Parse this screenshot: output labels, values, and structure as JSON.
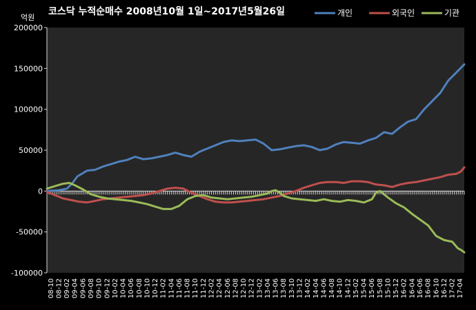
{
  "chart_data": {
    "type": "line",
    "title": "코스닥  누적순매수  2008년10월 1일~2017년5월26일",
    "unit_label": "억원",
    "ylim": [
      -100000,
      200000
    ],
    "yticks": [
      200000,
      150000,
      100000,
      50000,
      0,
      -50000,
      -100000
    ],
    "ytick_labels": [
      "200000",
      "150000",
      "100000",
      "50000",
      "0",
      "-50000",
      "-100000"
    ],
    "grid": false,
    "legend_position": "top-right",
    "x_tick_labels": [
      "08-10",
      "08-12",
      "09-02",
      "09-04",
      "09-06",
      "09-08",
      "09-10",
      "09-12",
      "10-02",
      "10-04",
      "10-06",
      "10-08",
      "10-10",
      "10-12",
      "11-02",
      "11-04",
      "11-06",
      "11-08",
      "11-10",
      "11-12",
      "12-02",
      "12-04",
      "12-06",
      "12-08",
      "12-10",
      "12-12",
      "13-02",
      "13-04",
      "13-06",
      "13-08",
      "13-10",
      "13-12",
      "14-02",
      "14-04",
      "14-06",
      "14-08",
      "14-10",
      "14-12",
      "15-02",
      "15-04",
      "15-06",
      "15-08",
      "15-10",
      "15-12",
      "16-02",
      "16-04",
      "16-06",
      "16-08",
      "16-10",
      "16-12",
      "17-02",
      "17-04"
    ],
    "x_range": [
      0,
      52
    ],
    "colors": {
      "axis": "#d9d9d9",
      "plot_bg": "#262626"
    },
    "series": [
      {
        "name": "개인",
        "color": "#4f81bd",
        "points": [
          [
            0,
            0
          ],
          [
            1.5,
            1000
          ],
          [
            2.5,
            3000
          ],
          [
            3.2,
            10000
          ],
          [
            3.8,
            18000
          ],
          [
            4.5,
            22000
          ],
          [
            5,
            25000
          ],
          [
            6,
            26000
          ],
          [
            7,
            30000
          ],
          [
            8,
            33000
          ],
          [
            9,
            36000
          ],
          [
            10,
            38000
          ],
          [
            11,
            42000
          ],
          [
            12,
            39000
          ],
          [
            13,
            40000
          ],
          [
            14,
            42000
          ],
          [
            15,
            44000
          ],
          [
            16,
            47000
          ],
          [
            17,
            44000
          ],
          [
            18,
            42000
          ],
          [
            19,
            48000
          ],
          [
            20,
            52000
          ],
          [
            21,
            56000
          ],
          [
            22,
            60000
          ],
          [
            23,
            62000
          ],
          [
            24,
            61000
          ],
          [
            25,
            62000
          ],
          [
            26,
            63000
          ],
          [
            27,
            58000
          ],
          [
            28,
            50000
          ],
          [
            29,
            51000
          ],
          [
            30,
            53000
          ],
          [
            31,
            55000
          ],
          [
            32,
            56000
          ],
          [
            33,
            54000
          ],
          [
            34,
            50000
          ],
          [
            35,
            52000
          ],
          [
            36,
            57000
          ],
          [
            37,
            60000
          ],
          [
            38,
            59000
          ],
          [
            39,
            58000
          ],
          [
            40,
            62000
          ],
          [
            41,
            65000
          ],
          [
            42,
            72000
          ],
          [
            43,
            70000
          ],
          [
            44,
            78000
          ],
          [
            45,
            85000
          ],
          [
            46,
            88000
          ],
          [
            47,
            100000
          ],
          [
            48,
            110000
          ],
          [
            49,
            120000
          ],
          [
            50,
            135000
          ],
          [
            51,
            145000
          ],
          [
            51.7,
            152000
          ],
          [
            52,
            155000
          ]
        ]
      },
      {
        "name": "외국인",
        "color": "#c0504d",
        "points": [
          [
            0,
            -1000
          ],
          [
            1,
            -5000
          ],
          [
            2,
            -9000
          ],
          [
            3,
            -11000
          ],
          [
            4,
            -13000
          ],
          [
            5,
            -14000
          ],
          [
            6,
            -12000
          ],
          [
            7,
            -10000
          ],
          [
            8,
            -9000
          ],
          [
            9,
            -8000
          ],
          [
            10,
            -7000
          ],
          [
            11,
            -6000
          ],
          [
            12,
            -5000
          ],
          [
            13,
            -3000
          ],
          [
            14,
            0
          ],
          [
            15,
            3000
          ],
          [
            16,
            4000
          ],
          [
            17,
            3000
          ],
          [
            18,
            -2000
          ],
          [
            19,
            -6000
          ],
          [
            20,
            -10000
          ],
          [
            21,
            -13000
          ],
          [
            22,
            -14000
          ],
          [
            23,
            -14000
          ],
          [
            24,
            -13000
          ],
          [
            25,
            -12000
          ],
          [
            26,
            -11000
          ],
          [
            27,
            -10000
          ],
          [
            28,
            -8000
          ],
          [
            29,
            -6000
          ],
          [
            30,
            -3000
          ],
          [
            31,
            0
          ],
          [
            32,
            4000
          ],
          [
            33,
            7000
          ],
          [
            34,
            10000
          ],
          [
            35,
            11000
          ],
          [
            36,
            11000
          ],
          [
            37,
            10000
          ],
          [
            38,
            12000
          ],
          [
            39,
            12000
          ],
          [
            40,
            11000
          ],
          [
            41,
            8000
          ],
          [
            42,
            7000
          ],
          [
            43,
            5000
          ],
          [
            44,
            8000
          ],
          [
            45,
            10000
          ],
          [
            46,
            11000
          ],
          [
            47,
            13000
          ],
          [
            48,
            15000
          ],
          [
            49,
            17000
          ],
          [
            50,
            20000
          ],
          [
            51,
            21000
          ],
          [
            51.6,
            24000
          ],
          [
            52,
            29000
          ]
        ]
      },
      {
        "name": "기관",
        "color": "#9bbb59",
        "points": [
          [
            0,
            3000
          ],
          [
            1,
            6000
          ],
          [
            2,
            9000
          ],
          [
            2.8,
            10000
          ],
          [
            3.5,
            7000
          ],
          [
            4.5,
            2000
          ],
          [
            5.5,
            -4000
          ],
          [
            6.5,
            -7000
          ],
          [
            7.5,
            -9000
          ],
          [
            8.5,
            -10000
          ],
          [
            9.5,
            -11000
          ],
          [
            10.5,
            -12000
          ],
          [
            11.5,
            -14000
          ],
          [
            12.5,
            -16000
          ],
          [
            13.5,
            -19000
          ],
          [
            14.5,
            -22000
          ],
          [
            15.5,
            -22000
          ],
          [
            16.5,
            -18000
          ],
          [
            17.5,
            -10000
          ],
          [
            18.5,
            -6000
          ],
          [
            19.5,
            -5000
          ],
          [
            20.5,
            -8000
          ],
          [
            21.5,
            -9000
          ],
          [
            22.5,
            -10000
          ],
          [
            23.5,
            -9000
          ],
          [
            24.5,
            -8000
          ],
          [
            25.5,
            -7000
          ],
          [
            26.5,
            -5000
          ],
          [
            27.5,
            -3000
          ],
          [
            28,
            0
          ],
          [
            28.5,
            1000
          ],
          [
            29,
            -2000
          ],
          [
            29.5,
            -6000
          ],
          [
            30.5,
            -9000
          ],
          [
            31.5,
            -10000
          ],
          [
            32.5,
            -11000
          ],
          [
            33.5,
            -12000
          ],
          [
            34.5,
            -10000
          ],
          [
            35.5,
            -12000
          ],
          [
            36.5,
            -13000
          ],
          [
            37.5,
            -11000
          ],
          [
            38.5,
            -12000
          ],
          [
            39.5,
            -14000
          ],
          [
            40.5,
            -10000
          ],
          [
            41,
            -2000
          ],
          [
            41.5,
            0
          ],
          [
            42.5,
            -8000
          ],
          [
            43.5,
            -15000
          ],
          [
            44.5,
            -20000
          ],
          [
            45.5,
            -28000
          ],
          [
            46.5,
            -35000
          ],
          [
            47.5,
            -42000
          ],
          [
            48.5,
            -55000
          ],
          [
            49.5,
            -60000
          ],
          [
            50.5,
            -62000
          ],
          [
            51.2,
            -70000
          ],
          [
            51.6,
            -72000
          ],
          [
            52,
            -75000
          ]
        ]
      }
    ]
  }
}
